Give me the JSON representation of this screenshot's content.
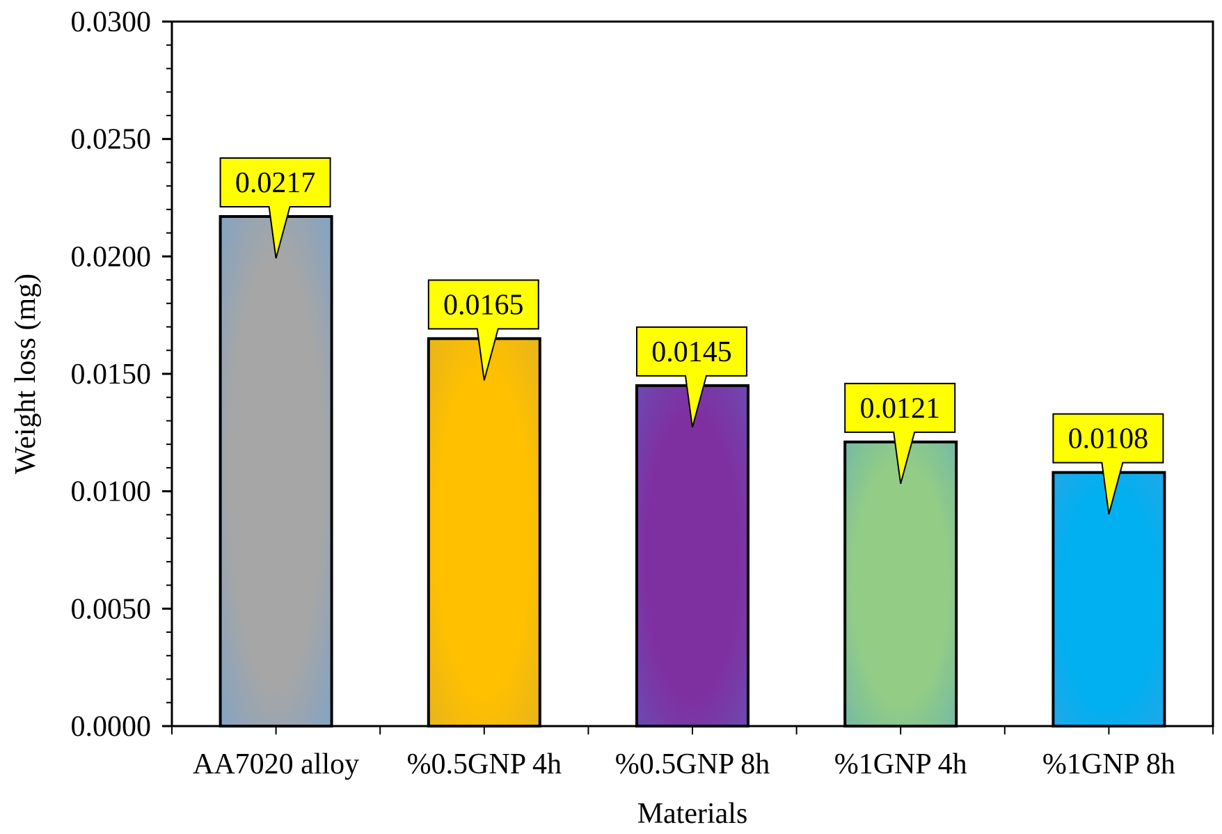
{
  "chart_data": {
    "type": "bar",
    "title": "",
    "xlabel": "Materials",
    "ylabel": "Weight loss (mg)",
    "ylim": [
      0,
      0.03
    ],
    "yticks": [
      "0.0000",
      "0.0050",
      "0.0100",
      "0.0150",
      "0.0200",
      "0.0250",
      "0.0300"
    ],
    "grid": false,
    "categories": [
      "AA7020 alloy",
      "%0.5GNP 4h",
      "%0.5GNP 8h",
      "%1GNP 4h",
      "%1GNP 8h"
    ],
    "values": [
      0.0217,
      0.0165,
      0.0145,
      0.0121,
      0.0108
    ],
    "data_labels": [
      "0.0217",
      "0.0165",
      "0.0145",
      "0.0121",
      "0.0108"
    ],
    "bar_colors": [
      "#A6A6A6",
      "#FFC000",
      "#7F30A0",
      "#93CD85",
      "#00B0F0"
    ],
    "bar_glow_colors": [
      "#7EA3C8",
      "#E4B320",
      "#6A4DB5",
      "#70B7A8",
      "#26A6E6"
    ],
    "callout_fill": "#FFFF00"
  }
}
